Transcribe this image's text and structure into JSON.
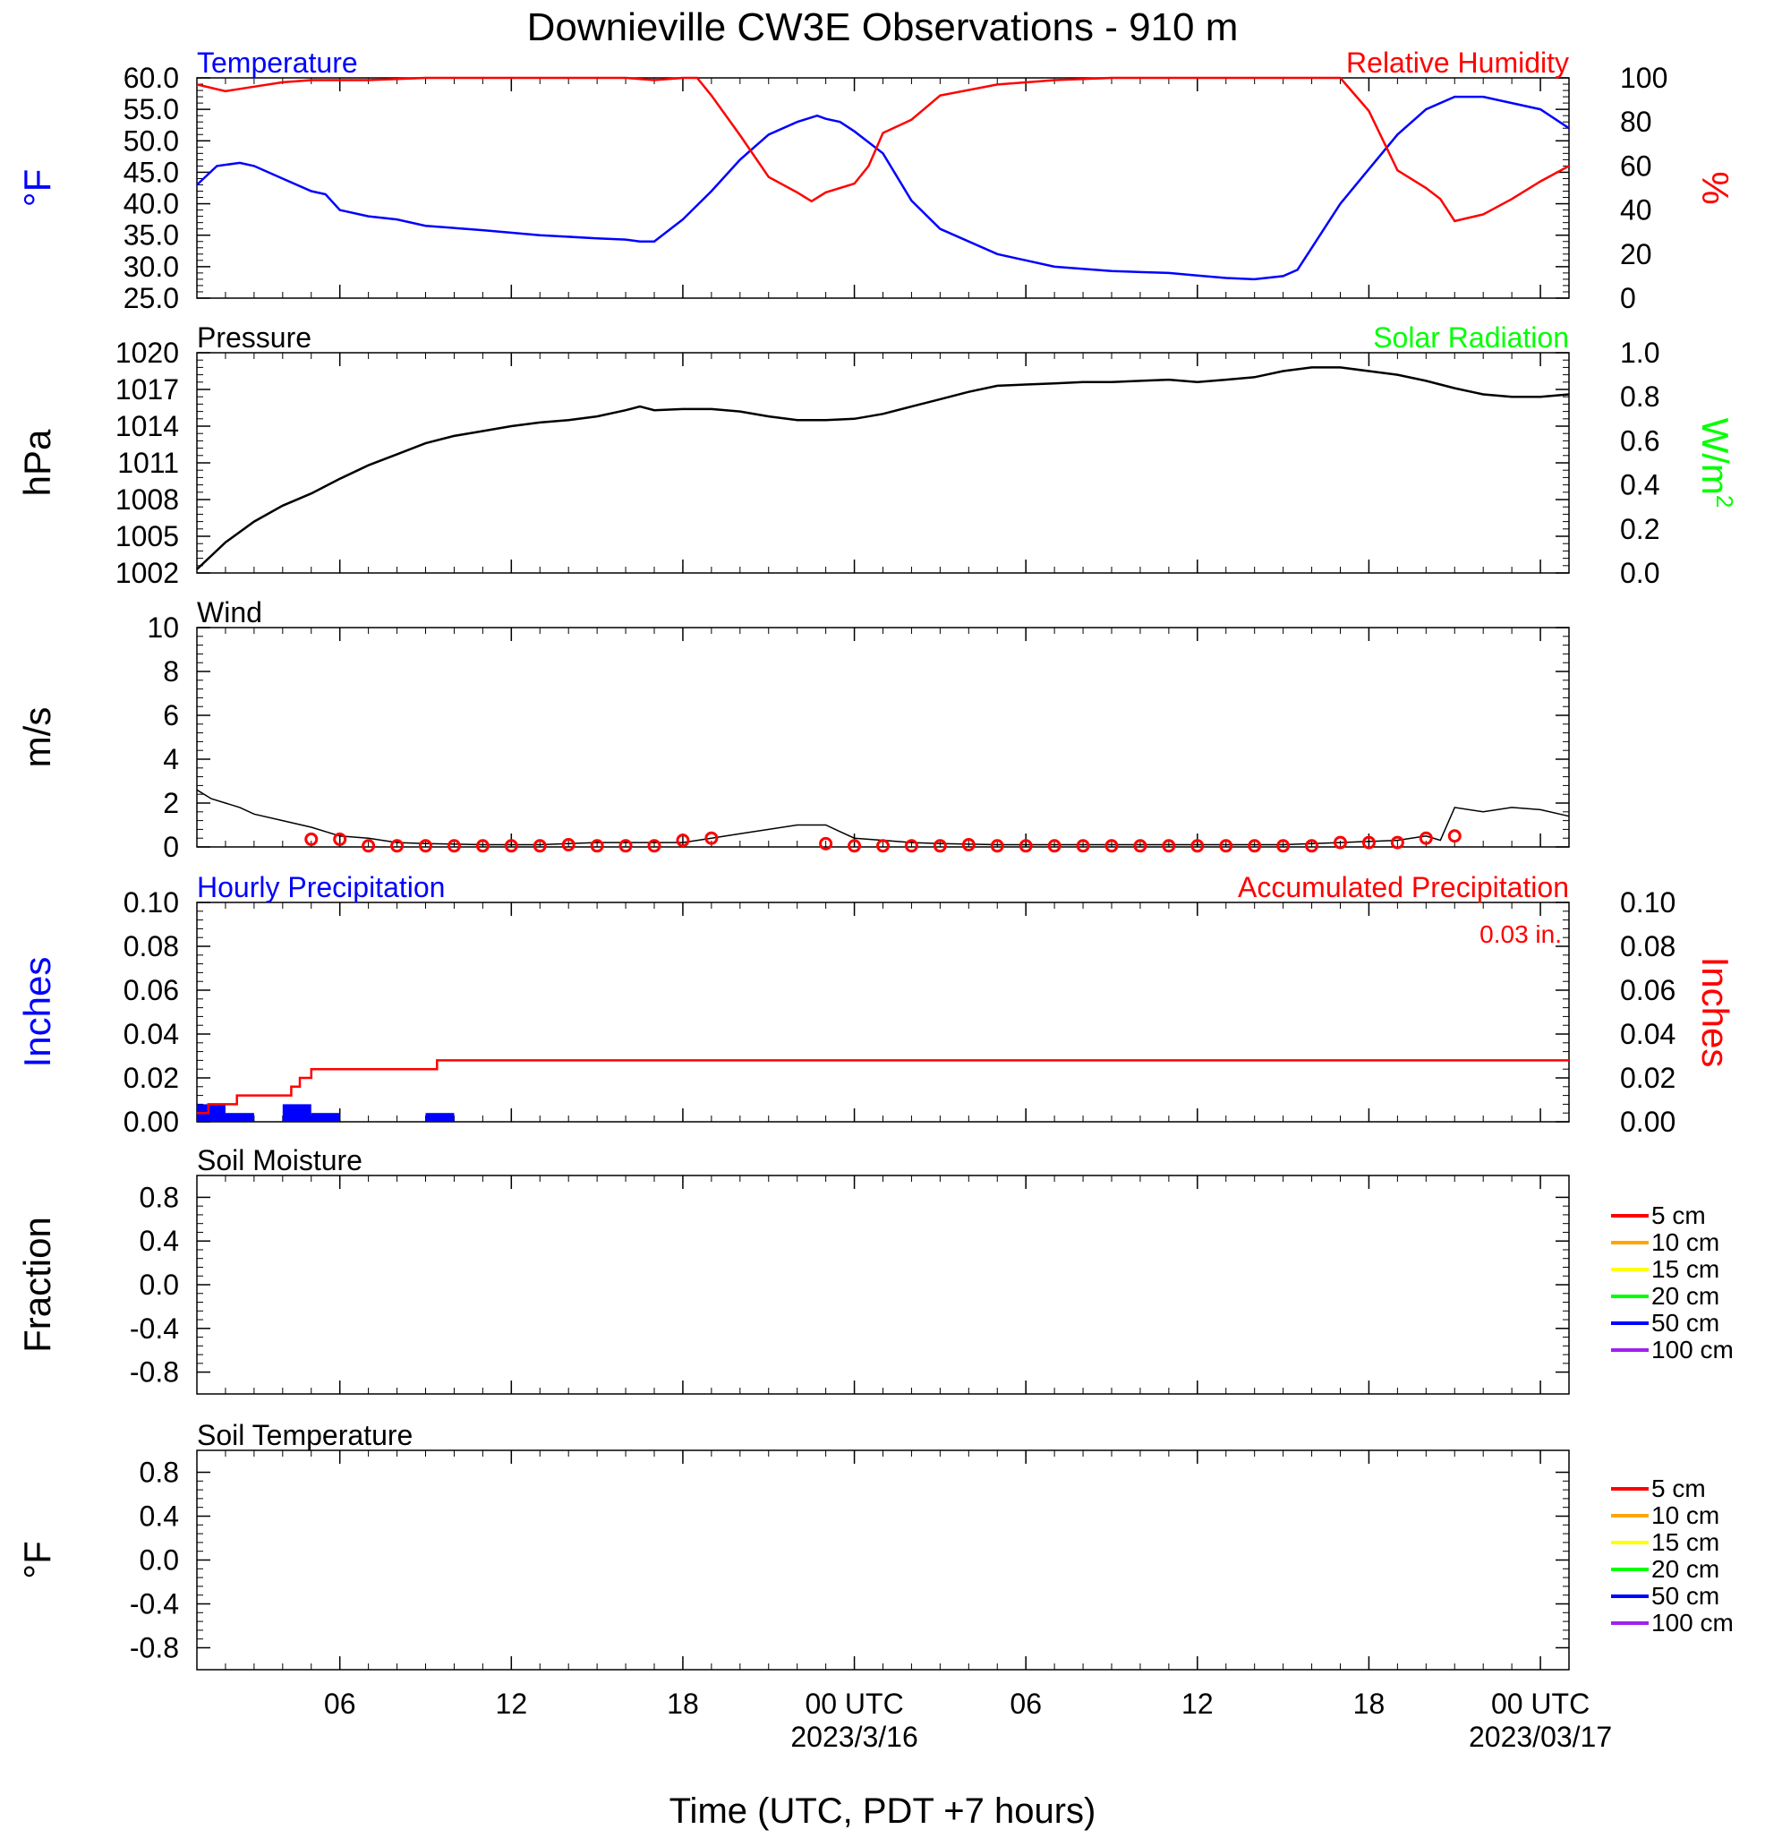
{
  "title": "Downieville CW3E Observations - 910 m",
  "x_axis": {
    "label": "Time (UTC, PDT +7 hours)",
    "range_hours": [
      0,
      48
    ],
    "ticks": [
      {
        "h": 5,
        "label": "06"
      },
      {
        "h": 11,
        "label": "12"
      },
      {
        "h": 17,
        "label": "18"
      },
      {
        "h": 23,
        "label": "00 UTC",
        "sub": "2023/3/16"
      },
      {
        "h": 29,
        "label": "06"
      },
      {
        "h": 35,
        "label": "12"
      },
      {
        "h": 41,
        "label": "18"
      },
      {
        "h": 47,
        "label": "00 UTC",
        "sub": "2023/03/17"
      }
    ]
  },
  "colors": {
    "temperature": "#0000ff",
    "humidity": "#ff0000",
    "pressure": "#000000",
    "solar": "#00ff00",
    "hourly_precip": "#0000ff",
    "accum_precip": "#ff0000",
    "wind": "#000000",
    "wind_marker": "#ff0000"
  },
  "legend": {
    "items": [
      {
        "label": "5 cm",
        "color": "#ff0000"
      },
      {
        "label": "10 cm",
        "color": "#ffa500"
      },
      {
        "label": "15 cm",
        "color": "#ffff00"
      },
      {
        "label": "20 cm",
        "color": "#00ff00"
      },
      {
        "label": "50 cm",
        "color": "#0000ff"
      },
      {
        "label": "100 cm",
        "color": "#a020f0"
      }
    ]
  },
  "chart_data": [
    {
      "type": "line",
      "panel": "temperature-humidity",
      "left_title": "Temperature",
      "right_title": "Relative Humidity",
      "ylabel_left": "°F",
      "ylabel_right": "%",
      "ylim_left": [
        25,
        60
      ],
      "yticks_left": [
        "25.0",
        "30.0",
        "35.0",
        "40.0",
        "45.0",
        "50.0",
        "55.0",
        "60.0"
      ],
      "ylim_right": [
        0,
        100
      ],
      "yticks_right": [
        "0",
        "20",
        "40",
        "60",
        "80",
        "100"
      ],
      "series": [
        {
          "name": "Temperature",
          "axis": "left",
          "x": [
            0,
            0.7,
            1.5,
            2,
            3,
            4,
            4.5,
            5,
            6,
            7,
            8,
            10,
            12,
            14,
            15,
            15.5,
            16,
            17,
            18,
            19,
            19.5,
            20,
            21,
            21.7,
            22,
            22.5,
            23,
            24,
            25,
            26,
            28,
            30,
            32,
            34,
            35,
            36,
            37,
            38,
            38.5,
            39,
            40,
            41,
            42,
            43,
            44,
            45,
            46,
            47,
            48
          ],
          "values": [
            43,
            46,
            46.5,
            46,
            44,
            42,
            41.5,
            39,
            38,
            37.5,
            36.5,
            35.8,
            35,
            34.5,
            34.3,
            34,
            34,
            37.5,
            42,
            47,
            49,
            51,
            53,
            54,
            53.5,
            53,
            51.5,
            48,
            40.5,
            36,
            32,
            30,
            29.3,
            29,
            28.6,
            28.2,
            28,
            28.5,
            29.5,
            33,
            40,
            45.5,
            51,
            55,
            57,
            57,
            56,
            55,
            52
          ]
        },
        {
          "name": "Relative Humidity",
          "axis": "right",
          "x": [
            0,
            1,
            2,
            3,
            4,
            5,
            6,
            8,
            10,
            12,
            14,
            15,
            16,
            17,
            17.5,
            18,
            19,
            20,
            21,
            21.5,
            22,
            23,
            23.5,
            24,
            25,
            26,
            28,
            30,
            32,
            34,
            36,
            38,
            39,
            40,
            41,
            42,
            43,
            43.5,
            44,
            45,
            46,
            47,
            48
          ],
          "values": [
            97,
            94,
            96,
            98,
            99,
            99,
            99,
            100,
            100,
            100,
            100,
            100,
            99,
            100,
            100,
            92,
            74,
            55,
            48,
            44,
            48,
            52,
            60,
            75,
            81,
            92,
            97,
            99,
            100,
            100,
            100,
            100,
            100,
            100,
            85,
            58,
            50,
            45,
            35,
            38,
            45,
            53,
            60
          ]
        }
      ]
    },
    {
      "type": "line",
      "panel": "pressure-solar",
      "left_title": "Pressure",
      "right_title": "Solar Radiation",
      "ylabel_left": "hPa",
      "ylabel_right": "W/m",
      "ylabel_right_sup": "2",
      "ylim_left": [
        1002,
        1020
      ],
      "yticks_left": [
        "1002",
        "1005",
        "1008",
        "1011",
        "1014",
        "1017",
        "1020"
      ],
      "ylim_right": [
        0,
        1
      ],
      "yticks_right": [
        "0.0",
        "0.2",
        "0.4",
        "0.6",
        "0.8",
        "1.0"
      ],
      "series": [
        {
          "name": "Pressure",
          "axis": "left",
          "x": [
            0,
            1,
            2,
            3,
            4,
            5,
            6,
            7,
            8,
            9,
            10,
            11,
            12,
            13,
            14,
            15,
            15.5,
            16,
            17,
            18,
            19,
            20,
            21,
            22,
            23,
            24,
            25,
            26,
            27,
            28,
            29,
            30,
            31,
            32,
            33,
            34,
            35,
            36,
            37,
            38,
            39,
            40,
            41,
            42,
            43,
            44,
            45,
            46,
            47,
            48
          ],
          "values": [
            1002.3,
            1004.5,
            1006.2,
            1007.5,
            1008.5,
            1009.7,
            1010.8,
            1011.7,
            1012.6,
            1013.2,
            1013.6,
            1014.0,
            1014.3,
            1014.5,
            1014.8,
            1015.3,
            1015.6,
            1015.3,
            1015.4,
            1015.4,
            1015.2,
            1014.8,
            1014.5,
            1014.5,
            1014.6,
            1015.0,
            1015.6,
            1016.2,
            1016.8,
            1017.3,
            1017.4,
            1017.5,
            1017.6,
            1017.6,
            1017.7,
            1017.8,
            1017.6,
            1017.8,
            1018.0,
            1018.5,
            1018.8,
            1018.8,
            1018.5,
            1018.2,
            1017.7,
            1017.1,
            1016.6,
            1016.4,
            1016.4,
            1016.6
          ]
        }
      ]
    },
    {
      "type": "line",
      "panel": "wind",
      "left_title": "Wind",
      "ylabel_left": "m/s",
      "ylim_left": [
        0,
        10
      ],
      "yticks_left": [
        "0",
        "2",
        "4",
        "6",
        "8",
        "10"
      ],
      "series": [
        {
          "name": "Wind speed",
          "x": [
            0,
            0.5,
            1,
            1.5,
            2,
            3,
            4,
            5,
            6,
            7,
            8,
            10,
            12,
            14,
            16,
            17,
            18,
            19,
            20,
            21,
            22,
            22.5,
            23,
            24,
            25,
            26,
            28,
            30,
            32,
            34,
            36,
            38,
            40,
            42,
            43,
            43.5,
            44,
            45,
            46,
            47,
            48
          ],
          "values": [
            2.6,
            2.2,
            2.0,
            1.8,
            1.5,
            1.2,
            0.9,
            0.5,
            0.4,
            0.2,
            0.15,
            0.1,
            0.1,
            0.2,
            0.2,
            0.2,
            0.4,
            0.6,
            0.8,
            1.0,
            1.0,
            0.7,
            0.4,
            0.3,
            0.2,
            0.15,
            0.1,
            0.1,
            0.1,
            0.1,
            0.1,
            0.1,
            0.2,
            0.3,
            0.5,
            0.3,
            1.8,
            1.6,
            1.8,
            1.7,
            1.4
          ]
        }
      ],
      "hourly_markers": {
        "h": [
          4,
          5,
          6,
          7,
          8,
          9,
          10,
          11,
          12,
          13,
          14,
          15,
          16,
          17,
          18,
          22,
          23,
          24,
          25,
          26,
          27,
          28,
          29,
          30,
          31,
          32,
          33,
          34,
          35,
          36,
          37,
          38,
          39,
          40,
          41,
          42,
          43,
          44
        ],
        "values": [
          0.35,
          0.35,
          0.05,
          0.05,
          0.05,
          0.05,
          0.05,
          0.05,
          0.05,
          0.1,
          0.05,
          0.05,
          0.05,
          0.3,
          0.4,
          0.15,
          0.05,
          0.05,
          0.05,
          0.05,
          0.1,
          0.05,
          0.05,
          0.05,
          0.05,
          0.05,
          0.05,
          0.05,
          0.05,
          0.05,
          0.05,
          0.05,
          0.05,
          0.2,
          0.2,
          0.2,
          0.4,
          0.5
        ]
      }
    },
    {
      "type": "bar",
      "panel": "precipitation",
      "left_title": "Hourly Precipitation",
      "right_title": "Accumulated Precipitation",
      "annotation": "0.03 in.",
      "ylabel_left": "Inches",
      "ylabel_right": "Inches",
      "ylim_left": [
        0,
        0.1
      ],
      "yticks_left": [
        "0.00",
        "0.02",
        "0.04",
        "0.06",
        "0.08",
        "0.10"
      ],
      "ylim_right": [
        0,
        0.1
      ],
      "yticks_right": [
        "0.00",
        "0.02",
        "0.04",
        "0.06",
        "0.08",
        "0.10"
      ],
      "bars": {
        "name": "Hourly Precipitation",
        "start_h": [
          0,
          1,
          3,
          4,
          8
        ],
        "values": [
          0.008,
          0.004,
          0.008,
          0.004,
          0.004
        ]
      },
      "series": [
        {
          "name": "Accumulated Precipitation",
          "x": [
            0,
            0.4,
            0.4,
            1.4,
            1.4,
            3.3,
            3.3,
            3.6,
            3.6,
            4.0,
            4.0,
            8.4,
            8.4,
            48
          ],
          "values": [
            0.004,
            0.004,
            0.008,
            0.008,
            0.012,
            0.012,
            0.016,
            0.016,
            0.02,
            0.02,
            0.024,
            0.024,
            0.028,
            0.028
          ]
        }
      ]
    },
    {
      "type": "line",
      "panel": "soil-moisture",
      "left_title": "Soil Moisture",
      "ylabel_left": "Fraction",
      "ylim_left": [
        -1,
        1
      ],
      "yticks_left": [
        "-0.8",
        "-0.4",
        "0.0",
        "0.4",
        "0.8"
      ],
      "series": []
    },
    {
      "type": "line",
      "panel": "soil-temperature",
      "left_title": "Soil Temperature",
      "ylabel_left": "°F",
      "ylim_left": [
        -1,
        1
      ],
      "yticks_left": [
        "-0.8",
        "-0.4",
        "0.0",
        "0.4",
        "0.8"
      ],
      "series": []
    }
  ]
}
